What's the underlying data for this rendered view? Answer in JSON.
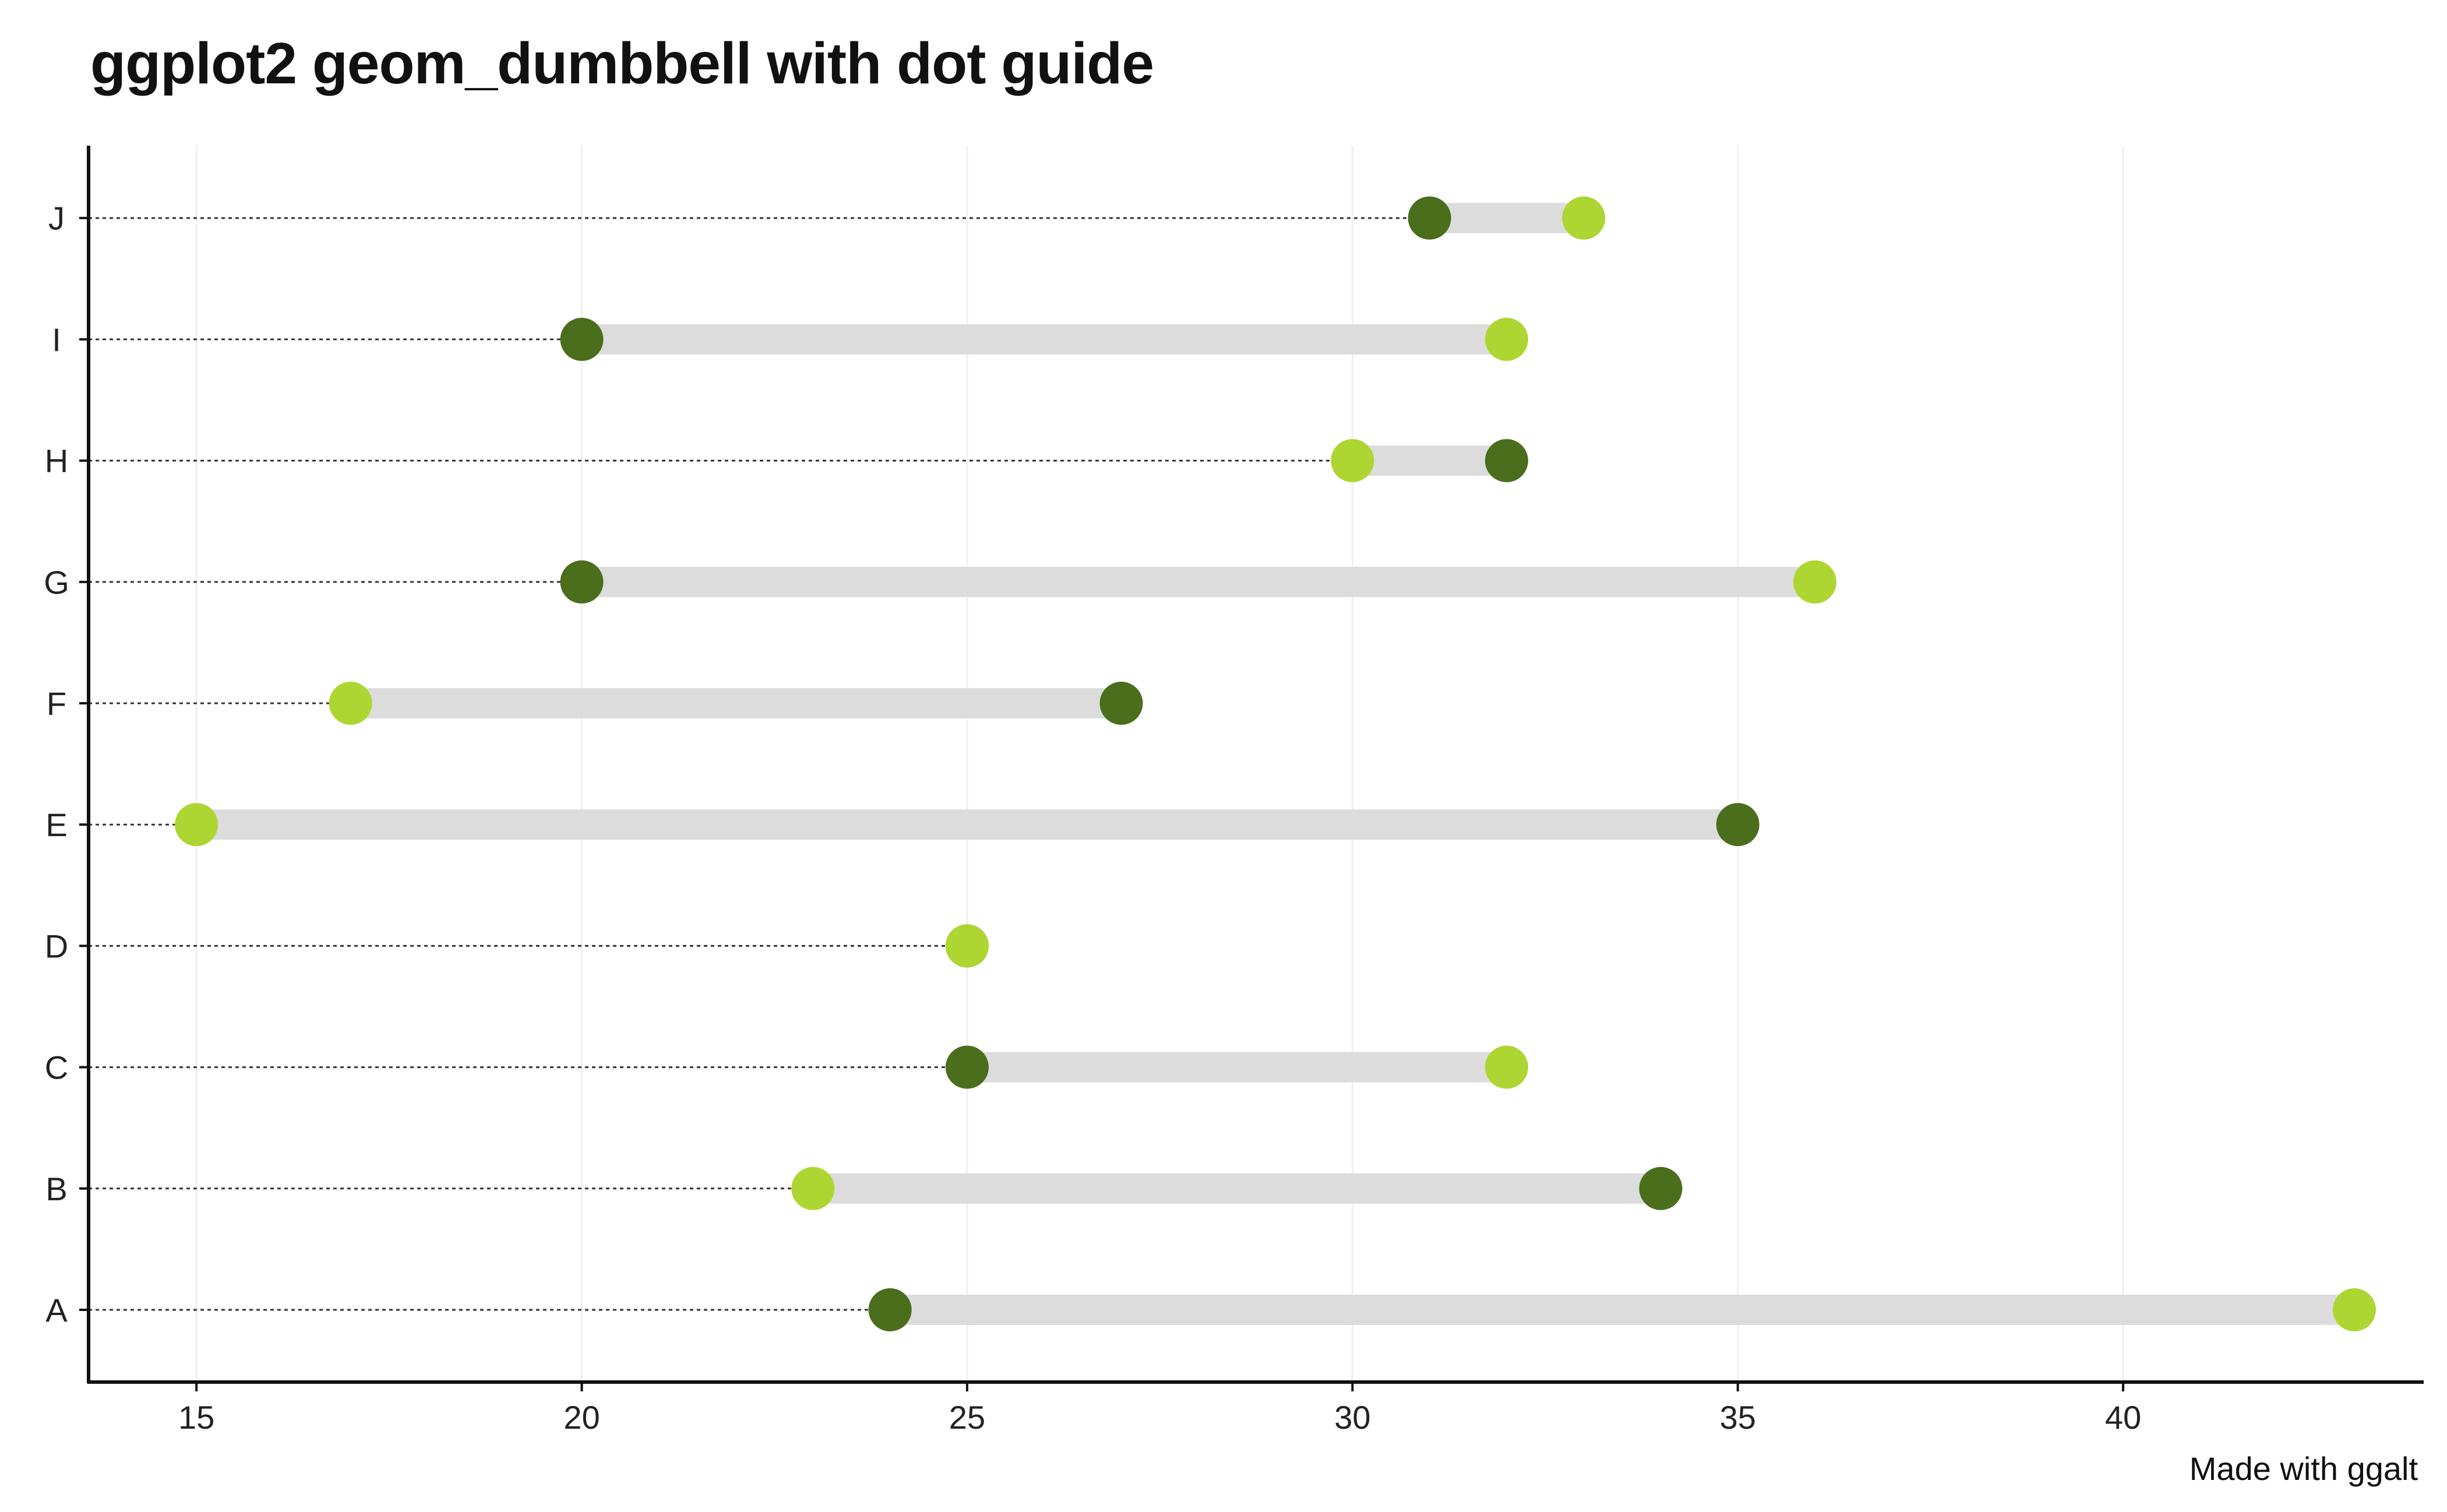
{
  "title": "ggplot2 geom_dumbbell with dot guide",
  "caption": "Made with ggalt",
  "colors": {
    "x_point": "#4a6e1c",
    "xend_point": "#add632",
    "segment": "#dcdcdc",
    "guide": "#333333",
    "axis": "#111111",
    "grid": "#f0f0f0"
  },
  "chart_data": {
    "type": "dumbbell",
    "title": "ggplot2 geom_dumbbell with dot guide",
    "caption": "Made with ggalt",
    "xlim": [
      13.6,
      43.9
    ],
    "x_ticks": [
      15,
      20,
      25,
      30,
      35,
      40
    ],
    "xlabel": "",
    "ylabel": "",
    "grid": "vertical major only",
    "categories": [
      "A",
      "B",
      "C",
      "D",
      "E",
      "F",
      "G",
      "H",
      "I",
      "J"
    ],
    "series": [
      {
        "name": "x",
        "color": "#4a6e1c",
        "values": [
          24,
          34,
          25,
          25,
          35,
          27,
          20,
          32,
          20,
          31
        ]
      },
      {
        "name": "xend",
        "color": "#add632",
        "values": [
          43,
          23,
          32,
          25,
          15,
          17,
          36,
          30,
          32,
          33
        ]
      }
    ]
  }
}
